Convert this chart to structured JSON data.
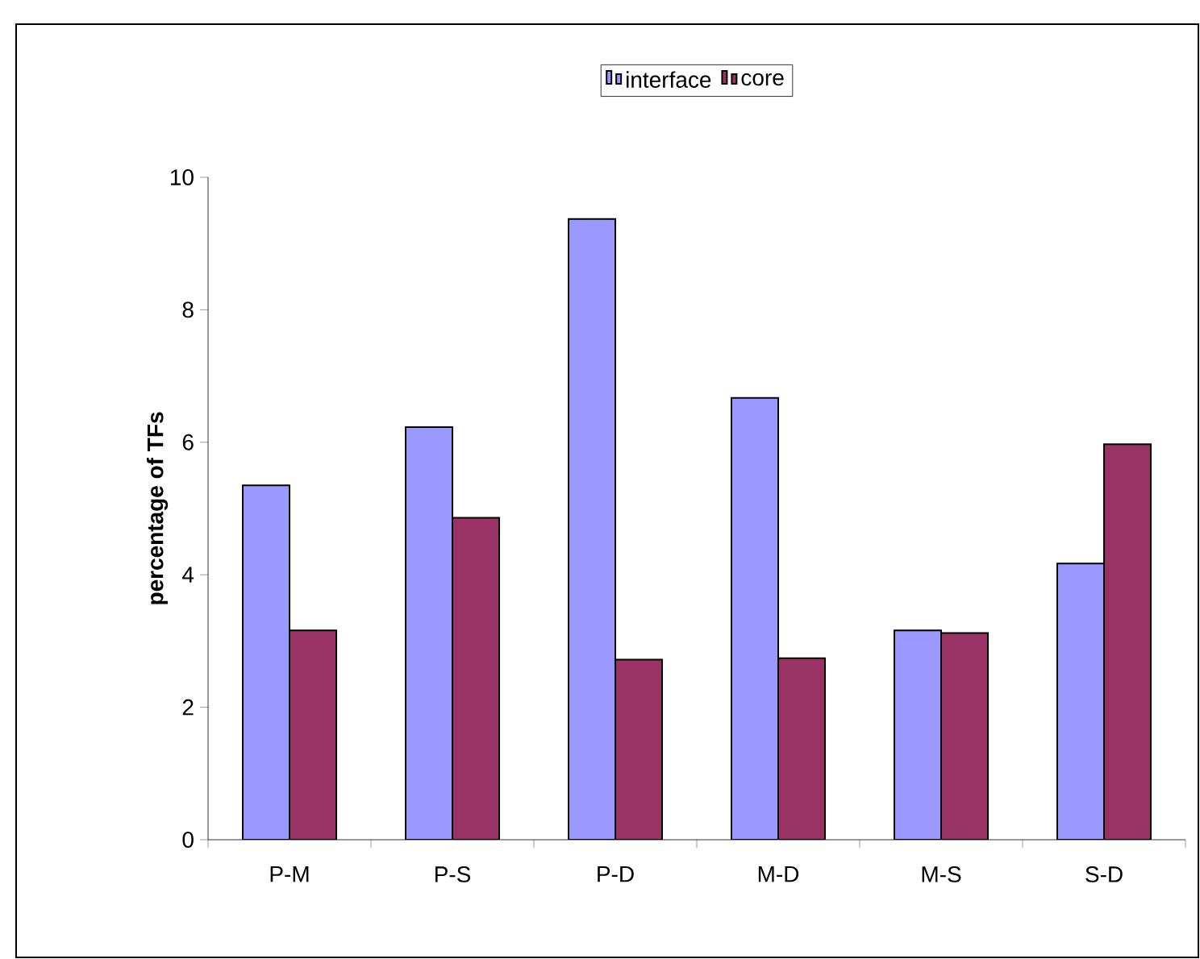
{
  "chart_data": {
    "type": "bar",
    "ylabel": "percentage of TFs",
    "categories": [
      "P-M",
      "P-S",
      "P-D",
      "M-D",
      "M-S",
      "S-D"
    ],
    "series": [
      {
        "name": "interface",
        "color": "#9999ff",
        "values": [
          5.35,
          6.23,
          9.37,
          6.67,
          3.16,
          4.17
        ]
      },
      {
        "name": "core",
        "color": "#993366",
        "values": [
          3.16,
          4.86,
          2.72,
          2.74,
          3.12,
          5.97
        ]
      }
    ],
    "ylim": [
      0,
      10
    ],
    "yticks": [
      0,
      2,
      4,
      6,
      8,
      10
    ],
    "grid": false,
    "legend": "top"
  }
}
